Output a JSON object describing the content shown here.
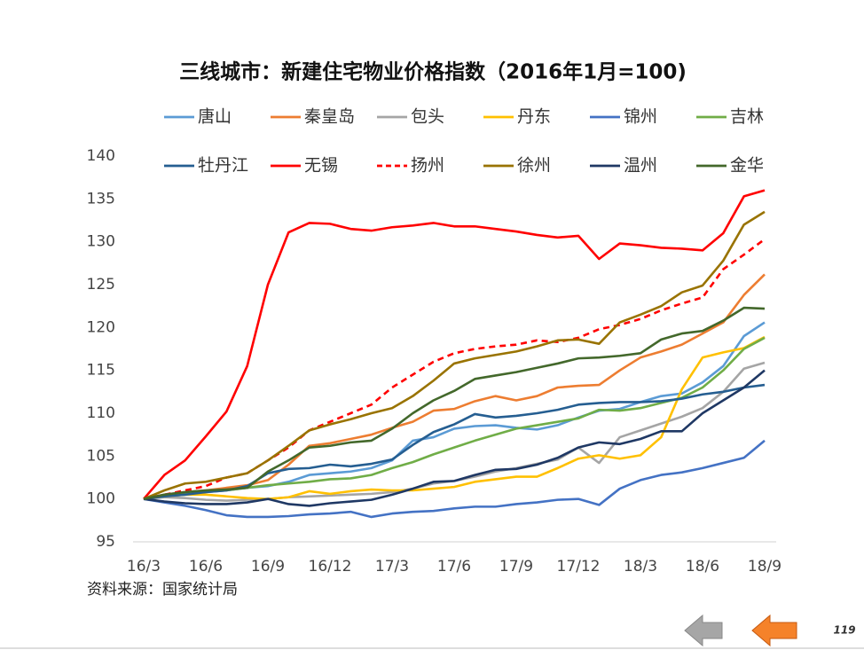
{
  "chart_data": {
    "type": "line",
    "title": "三线城市：新建住宅物业价格指数（2016年1月=100)",
    "source": "资料来源：国家统计局",
    "page_number": "119",
    "categories": [
      "16/3",
      null,
      null,
      "16/6",
      null,
      null,
      "16/9",
      null,
      null,
      "16/12",
      null,
      null,
      "17/3",
      null,
      null,
      "17/6",
      null,
      null,
      "17/9",
      null,
      null,
      "17/12",
      null,
      null,
      "18/3",
      null,
      null,
      "18/6",
      null,
      null,
      "18/9"
    ],
    "ylim": [
      95,
      140
    ],
    "yticks": [
      95,
      100,
      105,
      110,
      115,
      120,
      125,
      130,
      135,
      140
    ],
    "grid": false,
    "series": [
      {
        "name": "唐山",
        "color": "#5b9bd5",
        "values": [
          100,
          100.3,
          100.5,
          100.8,
          101,
          101.3,
          101.5,
          102,
          102.8,
          103,
          103.2,
          103.6,
          104.5,
          106.8,
          107.2,
          108.2,
          108.5,
          108.6,
          108.3,
          108.1,
          108.6,
          109.5,
          110.3,
          110.5,
          111.3,
          112,
          112.3,
          113.6,
          115.5,
          119,
          120.6
        ]
      },
      {
        "name": "秦皇岛",
        "color": "#ed7d31",
        "values": [
          100,
          100.5,
          100.8,
          101,
          101.3,
          101.6,
          102.2,
          104,
          106.2,
          106.5,
          107,
          107.5,
          108.3,
          109,
          110.3,
          110.5,
          111.4,
          112,
          111.5,
          112,
          113,
          113.2,
          113.3,
          115,
          116.5,
          117.2,
          118,
          119.3,
          120.6,
          123.8,
          126.2
        ]
      },
      {
        "name": "包头",
        "color": "#a5a5a5",
        "values": [
          100,
          100.2,
          100.1,
          99.9,
          99.8,
          99.9,
          100,
          100.2,
          100.3,
          100.4,
          100.5,
          100.6,
          100.8,
          101.2,
          101.8,
          102.1,
          102.6,
          103.2,
          103.6,
          104.1,
          104.6,
          106,
          104.2,
          107.2,
          108,
          108.8,
          109.6,
          110.6,
          112.5,
          115.2,
          115.9
        ]
      },
      {
        "name": "丹东",
        "color": "#ffc000",
        "values": [
          100,
          100.3,
          100.5,
          100.5,
          100.3,
          100.1,
          100,
          100.2,
          100.9,
          100.6,
          100.9,
          101.1,
          101,
          101,
          101.2,
          101.4,
          102,
          102.3,
          102.6,
          102.6,
          103.6,
          104.7,
          105.1,
          104.7,
          105.1,
          107.2,
          112.8,
          116.5,
          117.1,
          117.6,
          118.9
        ]
      },
      {
        "name": "锦州",
        "color": "#4472c4",
        "values": [
          100,
          99.6,
          99.2,
          98.7,
          98.1,
          97.9,
          97.9,
          98,
          98.2,
          98.3,
          98.5,
          97.9,
          98.3,
          98.5,
          98.6,
          98.9,
          99.1,
          99.1,
          99.4,
          99.6,
          99.9,
          100,
          99.3,
          101.2,
          102.2,
          102.8,
          103.1,
          103.6,
          104.2,
          104.8,
          106.8
        ]
      },
      {
        "name": "吉林",
        "color": "#70ad47",
        "values": [
          100,
          100.3,
          100.6,
          100.9,
          101,
          101.3,
          101.6,
          101.8,
          102,
          102.3,
          102.4,
          102.8,
          103.6,
          104.3,
          105.2,
          106,
          106.8,
          107.5,
          108.2,
          108.6,
          109,
          109.4,
          110.4,
          110.3,
          110.6,
          111.2,
          111.8,
          113,
          115,
          117.5,
          118.8
        ]
      },
      {
        "name": "牡丹江",
        "color": "#255e91",
        "values": [
          100,
          100.3,
          100.5,
          100.8,
          101,
          101.5,
          103,
          103.5,
          103.6,
          104,
          103.8,
          104.1,
          104.6,
          106.3,
          107.8,
          108.7,
          109.9,
          109.5,
          109.7,
          110,
          110.4,
          111,
          111.2,
          111.3,
          111.3,
          111.4,
          111.7,
          112.2,
          112.5,
          113,
          113.3
        ]
      },
      {
        "name": "无锡",
        "color": "#ff0000",
        "values": [
          100,
          102.8,
          104.5,
          107.3,
          110.2,
          115.5,
          125,
          131.1,
          132.2,
          132.1,
          131.5,
          131.3,
          131.7,
          131.9,
          132.2,
          131.8,
          131.8,
          131.5,
          131.2,
          130.8,
          130.5,
          130.7,
          128,
          129.8,
          129.6,
          129.3,
          129.2,
          129,
          131,
          135.3,
          136
        ]
      },
      {
        "name": "扬州",
        "color": "#ff0000",
        "dashed": true,
        "values": [
          100,
          100.5,
          101,
          101.5,
          102.5,
          103,
          104.5,
          106,
          108,
          109,
          110,
          111,
          113,
          114.5,
          116,
          117,
          117.5,
          117.8,
          118,
          118.5,
          118.3,
          118.8,
          119.8,
          120.3,
          121,
          122,
          122.8,
          123.5,
          126.8,
          128.5,
          130.3
        ]
      },
      {
        "name": "徐州",
        "color": "#997300",
        "values": [
          100,
          101,
          101.8,
          102,
          102.5,
          103,
          104.5,
          106.2,
          108,
          108.7,
          109.3,
          110,
          110.6,
          112,
          113.8,
          115.8,
          116.4,
          116.8,
          117.2,
          117.8,
          118.5,
          118.6,
          118.1,
          120.6,
          121.5,
          122.5,
          124.1,
          124.9,
          127.8,
          132,
          133.5
        ]
      },
      {
        "name": "温州",
        "color": "#1f3864",
        "values": [
          100,
          99.7,
          99.5,
          99.4,
          99.4,
          99.6,
          100,
          99.4,
          99.2,
          99.5,
          99.7,
          99.9,
          100.5,
          101.2,
          102,
          102.1,
          102.8,
          103.4,
          103.5,
          104,
          104.8,
          106,
          106.6,
          106.4,
          107,
          107.9,
          107.9,
          110,
          111.5,
          113,
          115
        ]
      },
      {
        "name": "金华",
        "color": "#43682b",
        "values": [
          100,
          100.5,
          100.8,
          101,
          101.1,
          101.3,
          103.2,
          104.5,
          106,
          106.2,
          106.6,
          106.8,
          108.2,
          110,
          111.5,
          112.6,
          114,
          114.4,
          114.8,
          115.3,
          115.8,
          116.4,
          116.5,
          116.7,
          117,
          118.6,
          119.3,
          119.6,
          120.8,
          122.3,
          122.2
        ]
      }
    ]
  }
}
